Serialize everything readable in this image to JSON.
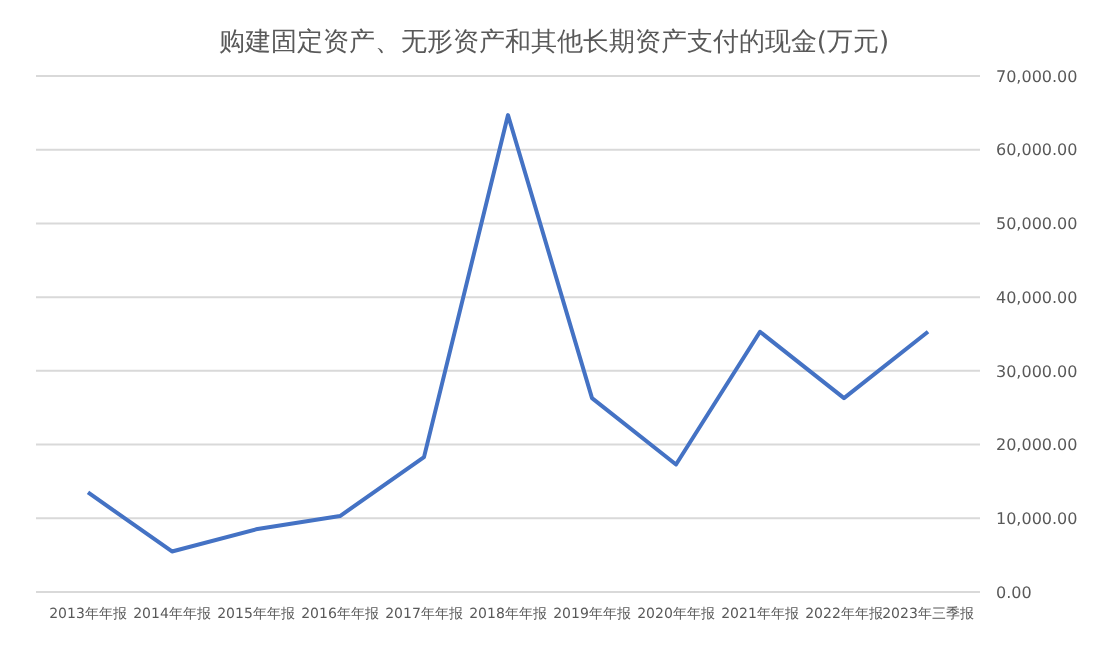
{
  "chart_data": {
    "type": "line",
    "title": "购建固定资产、无形资产和其他长期资产支付的现金(万元)",
    "categories": [
      "2013年年报",
      "2014年年报",
      "2015年年报",
      "2016年年报",
      "2017年年报",
      "2018年年报",
      "2019年年报",
      "2020年年报",
      "2021年年报",
      "2022年年报",
      "2023年三季报"
    ],
    "series": [
      {
        "color": "#4472c4",
        "values": [
          13500,
          5500,
          8500,
          10300,
          18300,
          64700,
          26300,
          17300,
          35300,
          26300,
          35300
        ]
      }
    ],
    "ylim": [
      0,
      70000
    ],
    "yticks": [
      {
        "value": 0,
        "label": "0.00"
      },
      {
        "value": 10000,
        "label": "10,000.00"
      },
      {
        "value": 20000,
        "label": "20,000.00"
      },
      {
        "value": 30000,
        "label": "30,000.00"
      },
      {
        "value": 40000,
        "label": "40,000.00"
      },
      {
        "value": 50000,
        "label": "50,000.00"
      },
      {
        "value": 60000,
        "label": "60,000.00"
      },
      {
        "value": 70000,
        "label": "70,000.00"
      }
    ],
    "grid": "y",
    "marker": "none",
    "line_style": "solid",
    "legend": false
  }
}
